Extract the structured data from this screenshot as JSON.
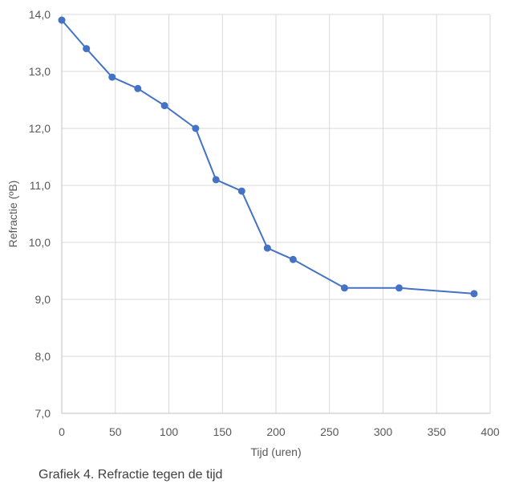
{
  "chart_data": {
    "type": "line",
    "title": "",
    "xlabel": "Tijd (uren)",
    "ylabel": "Refractie (ºB)",
    "xlim": [
      0,
      400
    ],
    "ylim": [
      7,
      14
    ],
    "x_ticks": [
      0,
      50,
      100,
      150,
      200,
      250,
      300,
      350,
      400
    ],
    "x_tick_labels": [
      "0",
      "50",
      "100",
      "150",
      "200",
      "250",
      "300",
      "350",
      "400"
    ],
    "y_ticks": [
      7,
      8,
      9,
      10,
      11,
      12,
      13,
      14
    ],
    "y_tick_labels": [
      "7,0",
      "8,0",
      "9,0",
      "10,0",
      "11,0",
      "12,0",
      "13,0",
      "14,0"
    ],
    "grid": true,
    "legend": "none",
    "series": [
      {
        "color": "#4472c4",
        "x": [
          0,
          23,
          47,
          71,
          96,
          125,
          144,
          168,
          192,
          216,
          264,
          315,
          385
        ],
        "y": [
          13.9,
          13.4,
          12.9,
          12.7,
          12.4,
          12.0,
          11.1,
          10.9,
          9.9,
          9.7,
          9.2,
          9.2,
          9.1
        ]
      }
    ]
  },
  "caption": "Grafiek 4. Refractie tegen de tijd"
}
